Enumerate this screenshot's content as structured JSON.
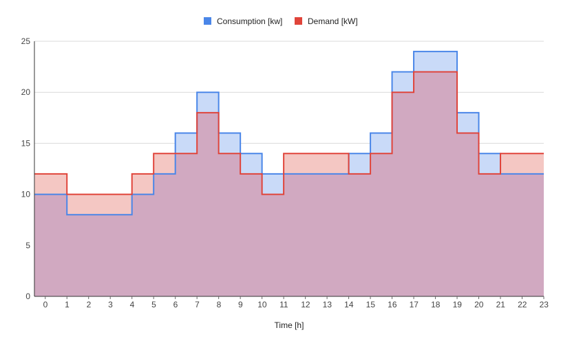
{
  "chart_data": {
    "type": "area",
    "step": true,
    "title": "",
    "xlabel": "Time [h]",
    "ylabel": "",
    "ylim": [
      0,
      25
    ],
    "yticks": [
      0,
      5,
      10,
      15,
      20,
      25
    ],
    "categories": [
      "0",
      "1",
      "2",
      "3",
      "4",
      "5",
      "6",
      "7",
      "8",
      "9",
      "10",
      "11",
      "12",
      "13",
      "14",
      "15",
      "16",
      "17",
      "18",
      "19",
      "20",
      "21",
      "22",
      "23"
    ],
    "grid": true,
    "legend_position": "top-center",
    "series": [
      {
        "name": "Consumption [kw]",
        "color": "#4a86e8",
        "fill": "#c9daf8",
        "values": [
          10,
          10,
          8,
          8,
          8,
          10,
          12,
          16,
          20,
          16,
          14,
          12,
          12,
          12,
          12,
          14,
          16,
          22,
          24,
          24,
          18,
          14,
          12,
          12
        ]
      },
      {
        "name": "Demand [kW]",
        "color": "#e0443a",
        "fill": "#f4c7c3",
        "values": [
          12,
          12,
          10,
          10,
          10,
          12,
          14,
          14,
          18,
          14,
          12,
          10,
          14,
          14,
          14,
          12,
          14,
          20,
          22,
          22,
          16,
          12,
          14,
          14
        ]
      }
    ],
    "overlap_fill": "#d1a9c1"
  }
}
